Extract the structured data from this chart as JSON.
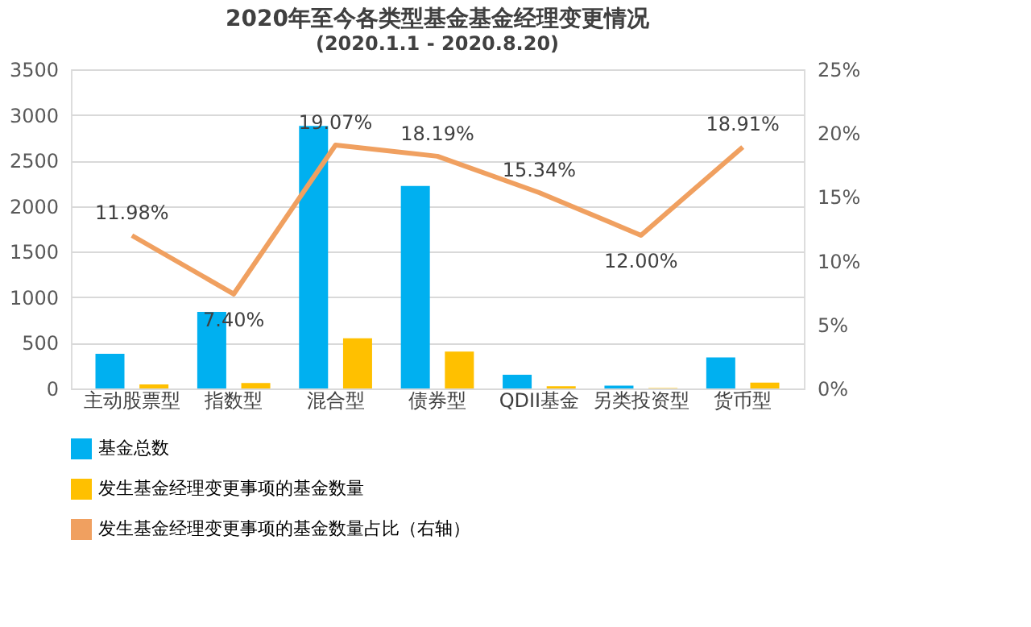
{
  "chart_data": {
    "type": "bar",
    "title": "2020年至今各类型基金基金经理变更情况",
    "subtitle": "(2020.1.1 - 2020.8.20)",
    "categories": [
      "主动股票型",
      "指数型",
      "混合型",
      "债券型",
      "QDII基金",
      "另类投资型",
      "货币型"
    ],
    "series": [
      {
        "name": "基金总数",
        "color": "#00b0f0",
        "values": [
          380,
          840,
          2880,
          2220,
          150,
          30,
          340
        ]
      },
      {
        "name": "发生基金经理变更事项的基金数量",
        "color": "#ffc000",
        "values": [
          45,
          60,
          550,
          405,
          25,
          5,
          65
        ]
      },
      {
        "name": "发生基金经理变更事项的基金数量占比（右轴）",
        "color": "#f0a060",
        "type": "line",
        "axis": "y2",
        "values": [
          11.98,
          7.4,
          19.07,
          18.19,
          15.34,
          12.0,
          18.91
        ],
        "value_labels": [
          "11.98%",
          "7.40%",
          "19.07%",
          "18.19%",
          "15.34%",
          "12.00%",
          "18.91%"
        ]
      }
    ],
    "ylim": [
      0,
      3500
    ],
    "yticks": [
      0,
      500,
      1000,
      1500,
      2000,
      2500,
      3000,
      3500
    ],
    "y2lim": [
      0,
      25
    ],
    "y2ticks": [
      {
        "value": 0,
        "label": "0%"
      },
      {
        "value": 5,
        "label": "5%"
      },
      {
        "value": 10,
        "label": "10%"
      },
      {
        "value": 15,
        "label": "15%"
      },
      {
        "value": 20,
        "label": "20%"
      },
      {
        "value": 25,
        "label": "25%"
      }
    ],
    "grid": "y",
    "legend": "bottom",
    "marker": "none",
    "line_style": "solid"
  }
}
